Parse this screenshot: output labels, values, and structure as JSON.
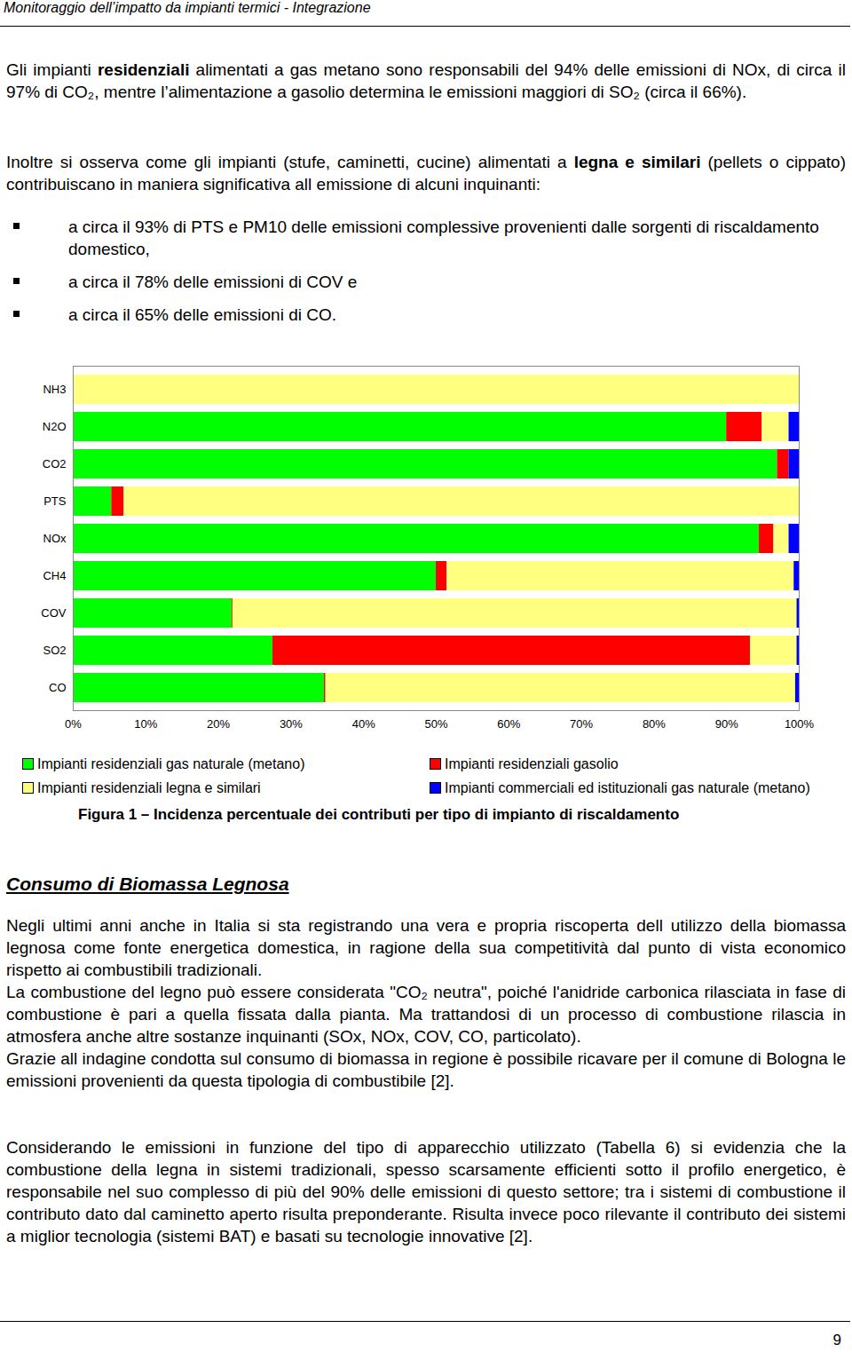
{
  "header": "Monitoraggio dell’impatto da impianti termici - Integrazione",
  "intro": [
    [
      "Gli impianti ",
      {
        "bold": "residenziali"
      },
      " alimentati a gas metano sono responsabili del 94% delle emissioni di NOx, di circa il 97% di CO₂, mentre l’alimentazione a gasolio determina le emissioni maggiori di SO₂ (circa il 66%)."
    ],
    [
      "Inoltre si osserva come gli impianti (stufe, caminetti, cucine) alimentati a ",
      {
        "bold": "legna e similari"
      },
      " (pellets o cippato) contribuiscano in maniera significativa all emissione di alcuni inquinanti:"
    ]
  ],
  "bullets": [
    "a circa il 93% di PTS e PM10 delle emissioni complessive provenienti dalle sorgenti di riscaldamento domestico,",
    "a circa il 78% delle emissioni di COV e",
    "a circa il 65% delle emissioni di CO."
  ],
  "chart_data": {
    "type": "bar",
    "orientation": "horizontal",
    "stacked": true,
    "title": "Figura 1 – Incidenza percentuale dei contributi per tipo di impianto di riscaldamento",
    "categories": [
      "NH3",
      "N2O",
      "CO2",
      "PTS",
      "NOx",
      "CH4",
      "COV",
      "SO2",
      "CO"
    ],
    "series": [
      {
        "name": "Impianti residenziali gas naturale (metano)",
        "color": "#00ff00",
        "values": [
          0,
          90.0,
          97.0,
          5.3,
          94.5,
          50.0,
          21.9,
          27.5,
          34.6
        ]
      },
      {
        "name": "Impianti residenziali gasolio",
        "color": "#ff0000",
        "values": [
          0,
          4.9,
          1.6,
          1.7,
          2.0,
          1.5,
          0.1,
          65.8,
          0.2
        ]
      },
      {
        "name": "Impianti residenziali legna e similari",
        "color": "#ffff80",
        "values": [
          100,
          3.7,
          0,
          93.0,
          2.1,
          47.8,
          77.7,
          6.4,
          64.7
        ]
      },
      {
        "name": "Impianti commerciali ed istituzionali gas naturale (metano)",
        "color": "#0000ff",
        "values": [
          0,
          1.4,
          1.4,
          0,
          1.4,
          0.7,
          0.3,
          0.3,
          0.5
        ]
      }
    ],
    "xlim": [
      0,
      100
    ],
    "xticks": [
      {
        "value": 0,
        "label": "0%"
      },
      {
        "value": 10,
        "label": "10%"
      },
      {
        "value": 20,
        "label": "20%"
      },
      {
        "value": 30,
        "label": "30%"
      },
      {
        "value": 40,
        "label": "40%"
      },
      {
        "value": 50,
        "label": "50%"
      },
      {
        "value": 60,
        "label": "60%"
      },
      {
        "value": 70,
        "label": "70%"
      },
      {
        "value": 80,
        "label": "80%"
      },
      {
        "value": 90,
        "label": "90%"
      },
      {
        "value": 100,
        "label": "100%"
      }
    ],
    "grid": false,
    "legend": "bottom"
  },
  "section_heading": "Consumo di Biomassa Legnosa",
  "section_paragraphs": [
    "Negli ultimi anni anche in Italia si sta registrando una vera e propria riscoperta dell utilizzo della biomassa legnosa come fonte energetica domestica, in ragione della sua competitività dal punto di vista economico rispetto ai combustibili tradizionali.",
    "La combustione del legno può essere considerata \"CO₂ neutra\", poiché l'anidride carbonica rilasciata in fase di combustione è pari a quella fissata dalla pianta. Ma trattandosi di un processo di combustione rilascia in atmosfera anche altre sostanze inquinanti (SOx, NOx, COV, CO, particolato).",
    "Grazie all indagine condotta sul consumo di biomassa in regione è possibile ricavare per il comune di Bologna le emissioni provenienti da questa tipologia di combustibile [2]."
  ],
  "closing_paragraph": "Considerando le emissioni in funzione del tipo di apparecchio utilizzato (Tabella 6) si evidenzia che la combustione della legna in sistemi tradizionali, spesso scarsamente efficienti sotto il profilo energetico, è responsabile nel suo complesso di più del 90% delle emissioni di questo settore; tra i sistemi di combustione il contributo dato dal caminetto aperto risulta preponderante. Risulta invece poco rilevante il contributo dei sistemi a miglior tecnologia (sistemi BAT) e basati su tecnologie innovative [2].",
  "page_number": "9"
}
